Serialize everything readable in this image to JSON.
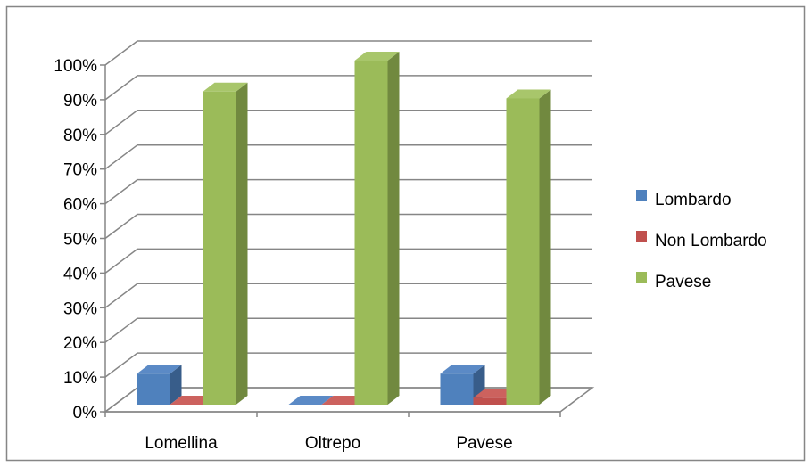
{
  "chart_data": {
    "type": "bar",
    "title": "",
    "xlabel": "",
    "ylabel": "",
    "categories": [
      "Lomellina",
      "Oltrepo",
      "Pavese"
    ],
    "series": [
      {
        "name": "Lombardo",
        "values": [
          9,
          0,
          9
        ],
        "color": "#4f81bd"
      },
      {
        "name": "Non Lombardo",
        "values": [
          0,
          0,
          2
        ],
        "color": "#c0504d"
      },
      {
        "name": "Pavese",
        "values": [
          91,
          100,
          89
        ],
        "color": "#9bbb59"
      }
    ],
    "ylim": [
      0,
      100
    ],
    "yticks": [
      0,
      10,
      20,
      30,
      40,
      50,
      60,
      70,
      80,
      90,
      100
    ],
    "ytick_labels": [
      "0%",
      "10%",
      "20%",
      "30%",
      "40%",
      "50%",
      "60%",
      "70%",
      "80%",
      "90%",
      "100%"
    ],
    "grid": true,
    "legend_position": "right",
    "style": "3d-clustered-column"
  }
}
